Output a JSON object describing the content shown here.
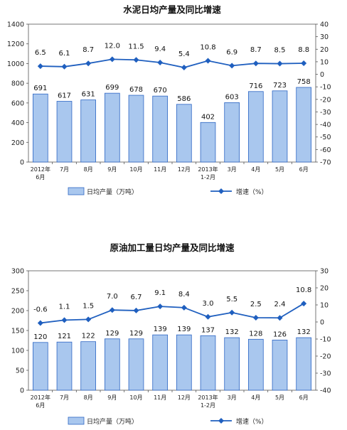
{
  "chart_data": [
    {
      "type": "bar",
      "title": "水泥日均产量及同比增速",
      "categories": [
        "2012年\n6月",
        "7月",
        "8月",
        "9月",
        "10月",
        "11月",
        "12月",
        "2013年\n1-2月",
        "3月",
        "4月",
        "5月",
        "6月"
      ],
      "series": [
        {
          "name": "日均产量（万吨）",
          "type": "bar",
          "axis": "left",
          "values": [
            691,
            617,
            631,
            699,
            678,
            670,
            586,
            402,
            603,
            716,
            723,
            758
          ]
        },
        {
          "name": "增速（%）",
          "type": "line",
          "axis": "right",
          "values": [
            6.5,
            6.1,
            8.7,
            12.0,
            11.5,
            9.4,
            5.4,
            10.8,
            6.9,
            8.7,
            8.5,
            8.8
          ]
        }
      ],
      "bar_labels": [
        "691",
        "617",
        "631",
        "699",
        "678",
        "670",
        "586",
        "402",
        "603",
        "716",
        "723",
        "758"
      ],
      "line_labels": [
        "6.5",
        "6.1",
        "8.7",
        "12.0",
        "11.5",
        "9.4",
        "5.4",
        "10.8",
        "6.9",
        "8.7",
        "8.5",
        "8.8"
      ],
      "ylim_left": [
        0,
        1400
      ],
      "yticks_left": [
        0,
        200,
        400,
        600,
        800,
        1000,
        1200,
        1400
      ],
      "ylim_right": [
        -70,
        40
      ],
      "yticks_right": [
        -70,
        -60,
        -50,
        -40,
        -30,
        -20,
        -10,
        0,
        10,
        20,
        30,
        40
      ],
      "grid": false,
      "legend_position": "bottom",
      "colors": {
        "bar_fill": "#a9c7ee",
        "bar_stroke": "#2d66c4",
        "line": "#1f5fbf"
      }
    },
    {
      "type": "bar",
      "title": "原油加工量日均产量及同比增速",
      "categories": [
        "2012年\n6月",
        "7月",
        "8月",
        "9月",
        "10月",
        "11月",
        "12月",
        "2013年\n1-2月",
        "3月",
        "4月",
        "5月",
        "6月"
      ],
      "series": [
        {
          "name": "日均产量（万吨）",
          "type": "bar",
          "axis": "left",
          "values": [
            120,
            121,
            122,
            129,
            129,
            139,
            139,
            137,
            132,
            128,
            126,
            132
          ]
        },
        {
          "name": "增速（%）",
          "type": "line",
          "axis": "right",
          "values": [
            -0.6,
            1.1,
            1.5,
            7.0,
            6.7,
            9.1,
            8.4,
            3.0,
            5.5,
            2.5,
            2.4,
            10.8
          ]
        }
      ],
      "bar_labels": [
        "120",
        "121",
        "122",
        "129",
        "129",
        "139",
        "139",
        "137",
        "132",
        "128",
        "126",
        "132"
      ],
      "line_labels": [
        "-0.6",
        "1.1",
        "1.5",
        "7.0",
        "6.7",
        "9.1",
        "8.4",
        "3.0",
        "5.5",
        "2.5",
        "2.4",
        "10.8"
      ],
      "ylim_left": [
        0,
        300
      ],
      "yticks_left": [
        0,
        50,
        100,
        150,
        200,
        250,
        300
      ],
      "ylim_right": [
        -40,
        30
      ],
      "yticks_right": [
        -40,
        -30,
        -20,
        -10,
        0,
        10,
        20,
        30
      ],
      "grid": false,
      "legend_position": "bottom",
      "colors": {
        "bar_fill": "#a9c7ee",
        "bar_stroke": "#2d66c4",
        "line": "#1f5fbf"
      }
    }
  ]
}
